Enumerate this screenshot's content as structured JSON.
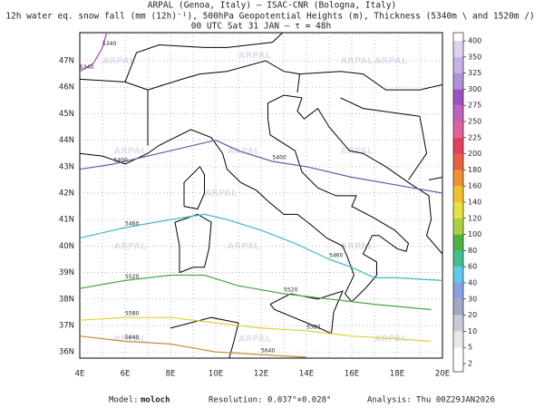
{
  "header": {
    "line1": "ARPAL (Genoa, Italy)  –  ISAC-CNR (Bologna, Italy)",
    "line2": "12h water eq. snow fall (mm (12h)⁻¹), 500hPa Geopotential Heights (m), Thickness (5340m \\ and 1520m /)",
    "line3": "00 UTC Sat 31 JAN  –  τ = 48h"
  },
  "map": {
    "lat_labels": [
      "36N",
      "37N",
      "38N",
      "39N",
      "40N",
      "41N",
      "42N",
      "43N",
      "44N",
      "45N",
      "46N",
      "47N"
    ],
    "lon_labels": [
      "4E",
      "6E",
      "8E",
      "10E",
      "12E",
      "14E",
      "16E",
      "18E",
      "20E"
    ],
    "watermark": "ARPAL",
    "contours": [
      {
        "label": "5340",
        "color": "#b23cb8"
      },
      {
        "label": "5400",
        "color": "#5560a8"
      },
      {
        "label": "5460",
        "color": "#3cb8c0"
      },
      {
        "label": "5520",
        "color": "#46a846"
      },
      {
        "label": "5580",
        "color": "#e0cf3a"
      },
      {
        "label": "5640",
        "color": "#c88a3a"
      }
    ]
  },
  "colorbar": {
    "levels": [
      2,
      5,
      10,
      20,
      30,
      40,
      60,
      80,
      100,
      120,
      140,
      160,
      180,
      200,
      225,
      250,
      275,
      300,
      325,
      350,
      400
    ],
    "colors": [
      "#ffffff",
      "#e8e8ec",
      "#c8cad8",
      "#a0a8c8",
      "#88a0e0",
      "#60c8e8",
      "#40c090",
      "#50b040",
      "#a8d040",
      "#e8e040",
      "#f0c030",
      "#f09030",
      "#e86040",
      "#e04060",
      "#e060a0",
      "#c060c0",
      "#a050c0",
      "#b090d8",
      "#c8b0e8",
      "#e0d0f0",
      "#ffffff"
    ]
  },
  "footer": {
    "model_label": "Model:",
    "model": "moloch",
    "resolution": "Resolution: 0.037°×0.028°",
    "analysis": "Analysis: Thu 00Z29JAN2026"
  }
}
